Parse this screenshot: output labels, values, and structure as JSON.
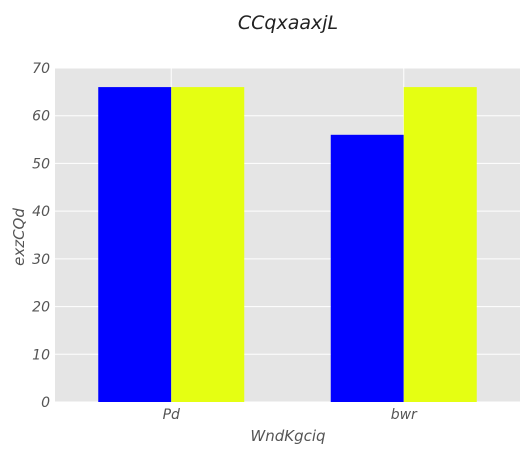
{
  "chart_data": {
    "type": "bar",
    "title": "CCqxaaxjL",
    "xlabel": "WndKgciq",
    "ylabel": "exzCQd",
    "categories": [
      "Pd",
      "bwr"
    ],
    "series": [
      {
        "values": [
          66,
          56
        ],
        "color": "#0000ff"
      },
      {
        "values": [
          66,
          66
        ],
        "color": "#e5ff12"
      }
    ],
    "ylim": [
      0,
      70
    ],
    "yticks": [
      0,
      10,
      20,
      30,
      40,
      50,
      60,
      70
    ],
    "grid": true,
    "background": "#e5e5e5",
    "gridColor": "#ffffff"
  }
}
